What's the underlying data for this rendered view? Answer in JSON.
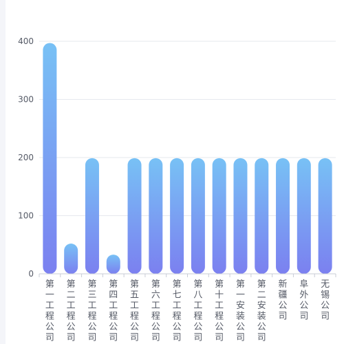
{
  "chart_data": {
    "type": "bar",
    "title": "",
    "xlabel": "",
    "ylabel": "",
    "categories": [
      "第一工程公司",
      "第二工程公司",
      "第三工程公司",
      "第四工程公司",
      "第五工程公司",
      "第六工程公司",
      "第七工程公司",
      "第八工程公司",
      "第十工程公司",
      "第一安装公司",
      "第二安装公司",
      "新疆公司",
      "阜外公司",
      "无锡公司"
    ],
    "values": [
      397,
      52,
      199,
      33,
      199,
      199,
      199,
      199,
      199,
      199,
      199,
      199,
      199,
      199
    ],
    "ylim": [
      0,
      400
    ],
    "yticks": [
      "0",
      "100",
      "200",
      "300",
      "400"
    ],
    "grid": true,
    "legend": "none",
    "colors": {
      "bar_top": "#78c1f5",
      "bar_bottom": "#7b80f0",
      "grid": "#e6e8ee",
      "axis": "#c8ccd6",
      "text": "#555a66"
    }
  }
}
